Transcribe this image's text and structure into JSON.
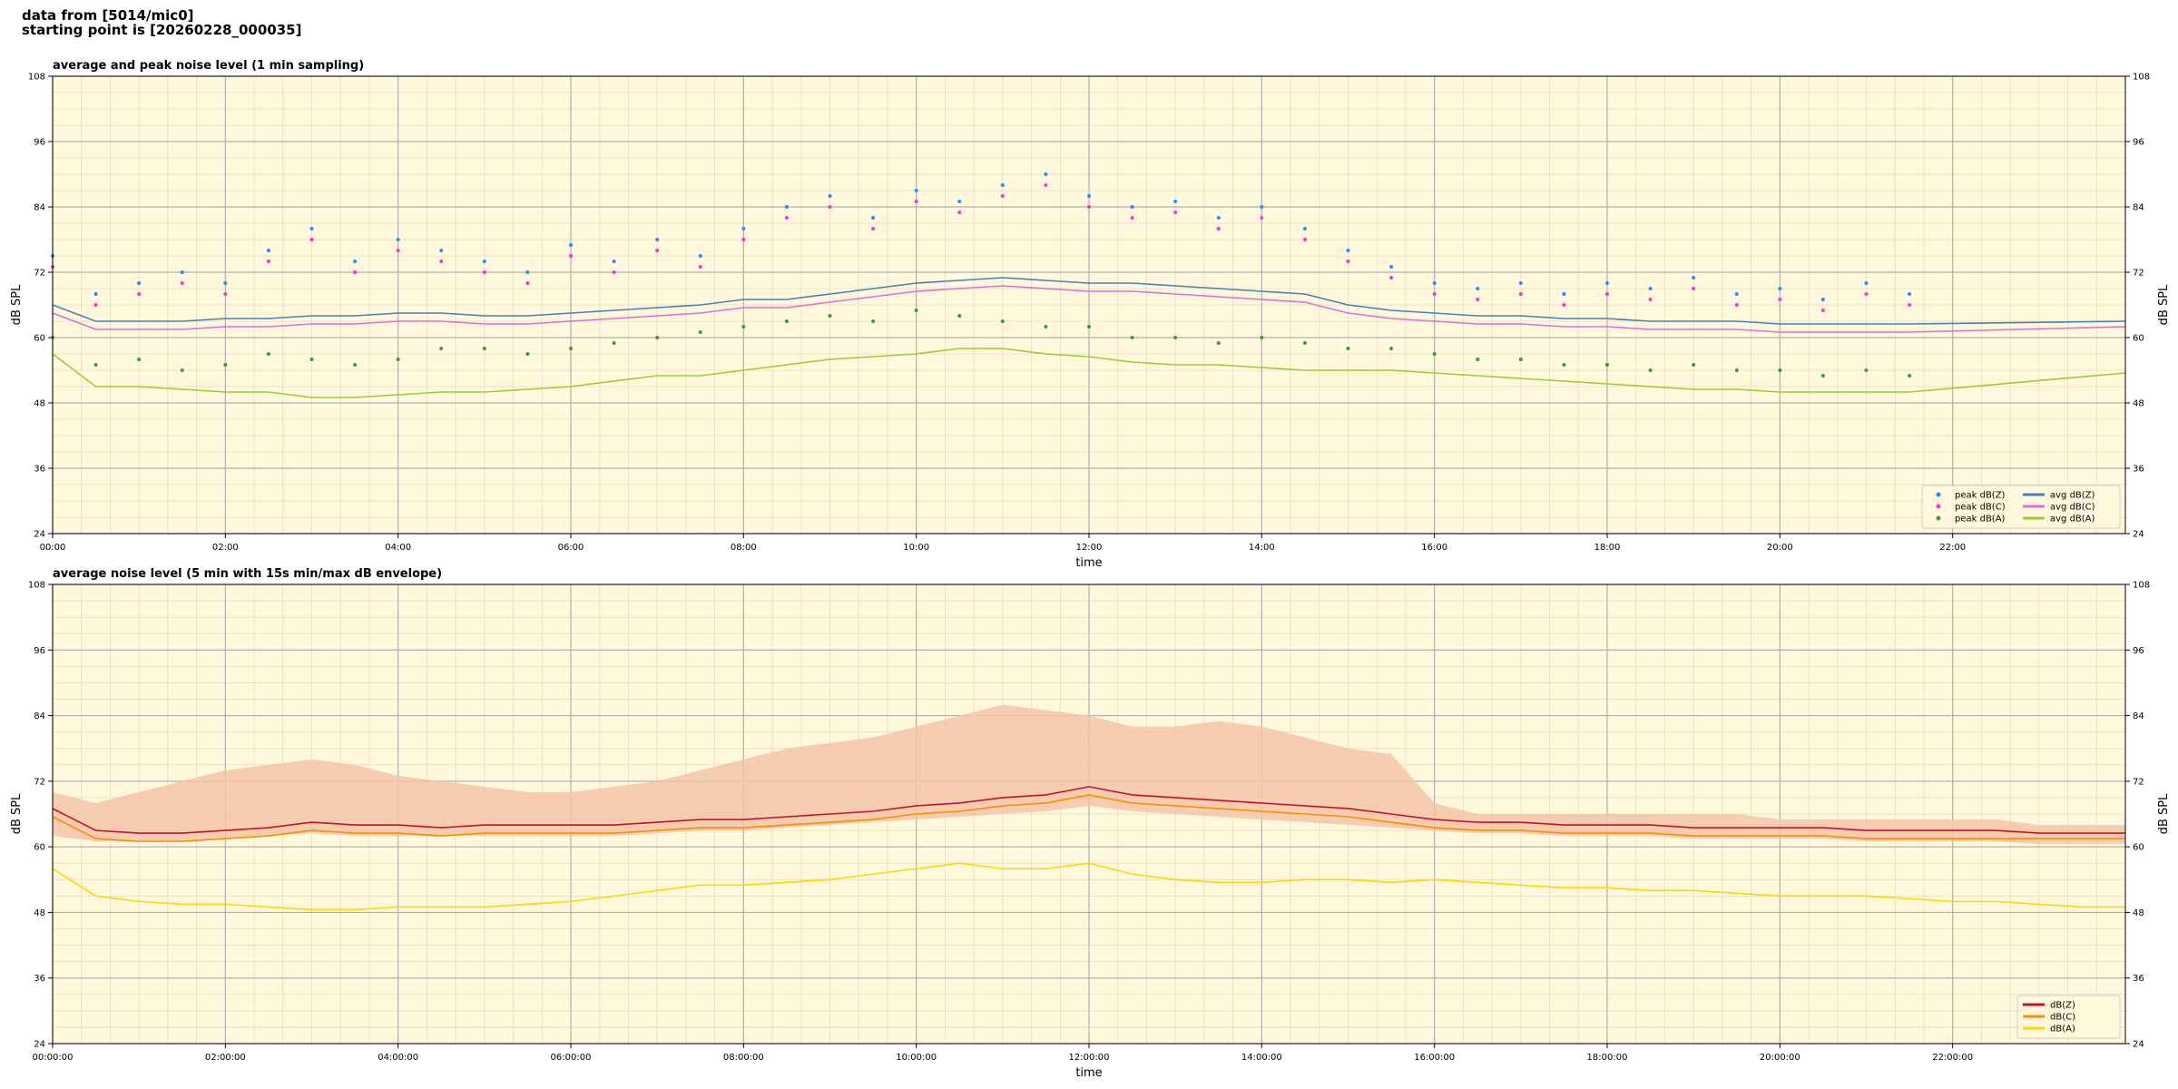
{
  "header": {
    "lines": [
      "data from [5014/mic0]",
      "starting point is [20260228_000035]"
    ]
  },
  "chart_data": [
    {
      "type": "line",
      "title": "average and peak noise level (1 min sampling)",
      "xlabel": "time",
      "ylabel": "dB SPL",
      "xlim": [
        0,
        24
      ],
      "ylim": [
        24,
        108
      ],
      "yticks": [
        24,
        36,
        48,
        60,
        72,
        84,
        96,
        108
      ],
      "xticks": [
        {
          "value": 0,
          "label": "00:00"
        },
        {
          "value": 2,
          "label": "02:00"
        },
        {
          "value": 4,
          "label": "04:00"
        },
        {
          "value": 6,
          "label": "06:00"
        },
        {
          "value": 8,
          "label": "08:00"
        },
        {
          "value": 10,
          "label": "10:00"
        },
        {
          "value": 12,
          "label": "12:00"
        },
        {
          "value": 14,
          "label": "14:00"
        },
        {
          "value": 16,
          "label": "16:00"
        },
        {
          "value": 18,
          "label": "18:00"
        },
        {
          "value": 20,
          "label": "20:00"
        },
        {
          "value": 22,
          "label": "22:00"
        }
      ],
      "grid": true,
      "minor_grid": true,
      "legend": "lower right",
      "legend_columns": 2,
      "background": "#fff8dc",
      "series": [
        {
          "name": "peak dB(Z)",
          "kind": "scatter",
          "color": "#1e90ff",
          "x": [
            0,
            0.5,
            1,
            1.5,
            2,
            2.5,
            3,
            3.5,
            4,
            4.5,
            5,
            5.5,
            6,
            6.5,
            7,
            7.5,
            8,
            8.5,
            9,
            9.5,
            10,
            10.5,
            11,
            11.5,
            12,
            12.5,
            13,
            13.5,
            14,
            14.5,
            15,
            15.5,
            16,
            16.5,
            17,
            17.5,
            18,
            18.5,
            19,
            19.5,
            20,
            20.5,
            21,
            21.5
          ],
          "values": [
            75,
            68,
            70,
            72,
            70,
            76,
            80,
            74,
            78,
            76,
            74,
            72,
            77,
            74,
            78,
            75,
            80,
            84,
            86,
            82,
            87,
            85,
            88,
            90,
            86,
            84,
            85,
            82,
            84,
            80,
            76,
            73,
            70,
            69,
            70,
            68,
            70,
            69,
            71,
            68,
            69,
            67,
            70,
            68
          ]
        },
        {
          "name": "peak dB(C)",
          "kind": "scatter",
          "color": "#ff33cc",
          "x": [
            0,
            0.5,
            1,
            1.5,
            2,
            2.5,
            3,
            3.5,
            4,
            4.5,
            5,
            5.5,
            6,
            6.5,
            7,
            7.5,
            8,
            8.5,
            9,
            9.5,
            10,
            10.5,
            11,
            11.5,
            12,
            12.5,
            13,
            13.5,
            14,
            14.5,
            15,
            15.5,
            16,
            16.5,
            17,
            17.5,
            18,
            18.5,
            19,
            19.5,
            20,
            20.5,
            21,
            21.5
          ],
          "values": [
            73,
            66,
            68,
            70,
            68,
            74,
            78,
            72,
            76,
            74,
            72,
            70,
            75,
            72,
            76,
            73,
            78,
            82,
            84,
            80,
            85,
            83,
            86,
            88,
            84,
            82,
            83,
            80,
            82,
            78,
            74,
            71,
            68,
            67,
            68,
            66,
            68,
            67,
            69,
            66,
            67,
            65,
            68,
            66
          ]
        },
        {
          "name": "peak dB(A)",
          "kind": "scatter",
          "color": "#3c9a3c",
          "x": [
            0,
            0.5,
            1,
            1.5,
            2,
            2.5,
            3,
            3.5,
            4,
            4.5,
            5,
            5.5,
            6,
            6.5,
            7,
            7.5,
            8,
            8.5,
            9,
            9.5,
            10,
            10.5,
            11,
            11.5,
            12,
            12.5,
            13,
            13.5,
            14,
            14.5,
            15,
            15.5,
            16,
            16.5,
            17,
            17.5,
            18,
            18.5,
            19,
            19.5,
            20,
            20.5,
            21,
            21.5
          ],
          "values": [
            60,
            55,
            56,
            54,
            55,
            57,
            56,
            55,
            56,
            58,
            58,
            57,
            58,
            59,
            60,
            61,
            62,
            63,
            64,
            63,
            65,
            64,
            63,
            62,
            62,
            60,
            60,
            59,
            60,
            59,
            58,
            58,
            57,
            56,
            56,
            55,
            55,
            54,
            55,
            54,
            54,
            53,
            54,
            53
          ]
        },
        {
          "name": "avg dB(Z)",
          "kind": "line",
          "color": "#4682b4",
          "x": [
            0,
            0.5,
            1,
            1.5,
            2,
            2.5,
            3,
            3.5,
            4,
            4.5,
            5,
            5.5,
            6,
            6.5,
            7,
            7.5,
            8,
            8.5,
            9,
            9.5,
            10,
            10.5,
            11,
            11.5,
            12,
            12.5,
            13,
            13.5,
            14,
            14.5,
            15,
            15.5,
            16,
            16.5,
            17,
            17.5,
            18,
            18.5,
            19,
            19.5,
            20,
            20.5,
            21,
            21.5,
            24
          ],
          "values": [
            66,
            63,
            63,
            63,
            63.5,
            63.5,
            64,
            64,
            64.5,
            64.5,
            64,
            64,
            64.5,
            65,
            65.5,
            66,
            67,
            67,
            68,
            69,
            70,
            70.5,
            71,
            70.5,
            70,
            70,
            69.5,
            69,
            68.5,
            68,
            66,
            65,
            64.5,
            64,
            64,
            63.5,
            63.5,
            63,
            63,
            63,
            62.5,
            62.5,
            62.5,
            62.5,
            63
          ]
        },
        {
          "name": "avg dB(C)",
          "kind": "line",
          "color": "#da70d6",
          "x": [
            0,
            0.5,
            1,
            1.5,
            2,
            2.5,
            3,
            3.5,
            4,
            4.5,
            5,
            5.5,
            6,
            6.5,
            7,
            7.5,
            8,
            8.5,
            9,
            9.5,
            10,
            10.5,
            11,
            11.5,
            12,
            12.5,
            13,
            13.5,
            14,
            14.5,
            15,
            15.5,
            16,
            16.5,
            17,
            17.5,
            18,
            18.5,
            19,
            19.5,
            20,
            20.5,
            21,
            21.5,
            24
          ],
          "values": [
            64.5,
            61.5,
            61.5,
            61.5,
            62,
            62,
            62.5,
            62.5,
            63,
            63,
            62.5,
            62.5,
            63,
            63.5,
            64,
            64.5,
            65.5,
            65.5,
            66.5,
            67.5,
            68.5,
            69,
            69.5,
            69,
            68.5,
            68.5,
            68,
            67.5,
            67,
            66.5,
            64.5,
            63.5,
            63,
            62.5,
            62.5,
            62,
            62,
            61.5,
            61.5,
            61.5,
            61,
            61,
            61,
            61,
            62
          ]
        },
        {
          "name": "avg dB(A)",
          "kind": "line",
          "color": "#9acd32",
          "x": [
            0,
            0.5,
            1,
            1.5,
            2,
            2.5,
            3,
            3.5,
            4,
            4.5,
            5,
            5.5,
            6,
            6.5,
            7,
            7.5,
            8,
            8.5,
            9,
            9.5,
            10,
            10.5,
            11,
            11.5,
            12,
            12.5,
            13,
            13.5,
            14,
            14.5,
            15,
            15.5,
            16,
            16.5,
            17,
            17.5,
            18,
            18.5,
            19,
            19.5,
            20,
            20.5,
            21,
            21.5,
            24
          ],
          "values": [
            57,
            51,
            51,
            50.5,
            50,
            50,
            49,
            49,
            49.5,
            50,
            50,
            50.5,
            51,
            52,
            53,
            53,
            54,
            55,
            56,
            56.5,
            57,
            58,
            58,
            57,
            56.5,
            55.5,
            55,
            55,
            54.5,
            54,
            54,
            54,
            53.5,
            53,
            52.5,
            52,
            51.5,
            51,
            50.5,
            50.5,
            50,
            50,
            50,
            50,
            53.5
          ]
        }
      ]
    },
    {
      "type": "line",
      "title": "average noise level (5 min with 15s min/max dB envelope)",
      "xlabel": "time",
      "ylabel": "dB SPL",
      "xlim": [
        0,
        24
      ],
      "ylim": [
        24,
        108
      ],
      "yticks": [
        24,
        36,
        48,
        60,
        72,
        84,
        96,
        108
      ],
      "xticks": [
        {
          "value": 0,
          "label": "00:00:00"
        },
        {
          "value": 2,
          "label": "02:00:00"
        },
        {
          "value": 4,
          "label": "04:00:00"
        },
        {
          "value": 6,
          "label": "06:00:00"
        },
        {
          "value": 8,
          "label": "08:00:00"
        },
        {
          "value": 10,
          "label": "10:00:00"
        },
        {
          "value": 12,
          "label": "12:00:00"
        },
        {
          "value": 14,
          "label": "14:00:00"
        },
        {
          "value": 16,
          "label": "16:00:00"
        },
        {
          "value": 18,
          "label": "18:00:00"
        },
        {
          "value": 20,
          "label": "20:00:00"
        },
        {
          "value": 22,
          "label": "22:00:00"
        }
      ],
      "grid": true,
      "minor_grid": true,
      "legend": "lower right",
      "legend_columns": 1,
      "background": "#fff8dc",
      "x": [
        0,
        0.5,
        1,
        1.5,
        2,
        2.5,
        3,
        3.5,
        4,
        4.5,
        5,
        5.5,
        6,
        6.5,
        7,
        7.5,
        8,
        8.5,
        9,
        9.5,
        10,
        10.5,
        11,
        11.5,
        12,
        12.5,
        13,
        13.5,
        14,
        14.5,
        15,
        15.5,
        16,
        16.5,
        17,
        17.5,
        18,
        18.5,
        19,
        19.5,
        20,
        20.5,
        21,
        21.5,
        22,
        22.5,
        23,
        23.5,
        24
      ],
      "envelope": {
        "color": "#f5c2a6",
        "max": [
          70,
          68,
          70,
          72,
          74,
          75,
          76,
          75,
          73,
          72,
          71,
          70,
          70,
          71,
          72,
          74,
          76,
          78,
          79,
          80,
          82,
          84,
          86,
          85,
          84,
          82,
          82,
          83,
          82,
          80,
          78,
          77,
          68,
          66,
          66,
          66,
          66,
          66,
          66,
          66,
          65,
          65,
          65,
          65,
          65,
          65,
          64,
          64,
          64
        ],
        "min": [
          62,
          61,
          61,
          61,
          61.5,
          62,
          62.5,
          62,
          62,
          62,
          62,
          62,
          62,
          62,
          62.5,
          63,
          63,
          63.5,
          64,
          64.5,
          65,
          65.5,
          66,
          66.5,
          67.5,
          66.5,
          66,
          65.5,
          65,
          64.5,
          64,
          63.5,
          63,
          62.5,
          62.5,
          62,
          62,
          62,
          61.5,
          61.5,
          61.5,
          61.5,
          61,
          61,
          61,
          61,
          60.5,
          60.5,
          60.5
        ]
      },
      "series": [
        {
          "name": "dB(Z)",
          "kind": "line",
          "color": "#c8102e",
          "values": [
            67,
            63,
            62.5,
            62.5,
            63,
            63.5,
            64.5,
            64,
            64,
            63.5,
            64,
            64,
            64,
            64,
            64.5,
            65,
            65,
            65.5,
            66,
            66.5,
            67.5,
            68,
            69,
            69.5,
            71,
            69.5,
            69,
            68.5,
            68,
            67.5,
            67,
            66,
            65,
            64.5,
            64.5,
            64,
            64,
            64,
            63.5,
            63.5,
            63.5,
            63.5,
            63,
            63,
            63,
            63,
            62.5,
            62.5,
            62.5
          ]
        },
        {
          "name": "dB(C)",
          "kind": "line",
          "color": "#ff8c00",
          "values": [
            65.5,
            61.5,
            61,
            61,
            61.5,
            62,
            63,
            62.5,
            62.5,
            62,
            62.5,
            62.5,
            62.5,
            62.5,
            63,
            63.5,
            63.5,
            64,
            64.5,
            65,
            66,
            66.5,
            67.5,
            68,
            69.5,
            68,
            67.5,
            67,
            66.5,
            66,
            65.5,
            64.5,
            63.5,
            63,
            63,
            62.5,
            62.5,
            62.5,
            62,
            62,
            62,
            62,
            61.5,
            61.5,
            61.5,
            61.5,
            61.5,
            61.5,
            61.5
          ]
        },
        {
          "name": "dB(A)",
          "kind": "line",
          "color": "#ffd700",
          "values": [
            56,
            51,
            50,
            49.5,
            49.5,
            49,
            48.5,
            48.5,
            49,
            49,
            49,
            49.5,
            50,
            51,
            52,
            53,
            53,
            53.5,
            54,
            55,
            56,
            57,
            56,
            56,
            57,
            55,
            54,
            53.5,
            53.5,
            54,
            54,
            53.5,
            54,
            53.5,
            53,
            52.5,
            52.5,
            52,
            52,
            51.5,
            51,
            51,
            51,
            50.5,
            50,
            50,
            49.5,
            49,
            49
          ]
        }
      ]
    }
  ]
}
